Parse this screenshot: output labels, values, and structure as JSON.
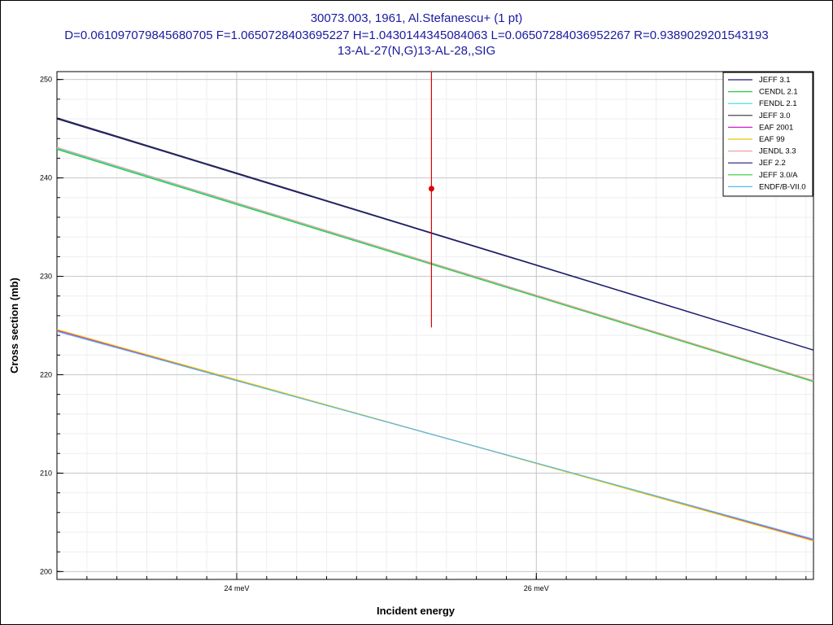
{
  "header": {
    "line1": "30073.003, 1961, Al.Stefanescu+ (1 pt)",
    "line2": "D=0.061097079845680705 F=1.0650728403695227 H=1.0430144345084063 L=0.06507284036952267 R=0.9389029201543193",
    "line3": "13-AL-27(N,G)13-AL-28,,SIG"
  },
  "chart_data": {
    "type": "line",
    "title": "30073.003, 1961, Al.Stefanescu+ (1 pt)",
    "xlabel": "Incident energy",
    "ylabel": "Cross section (mb)",
    "x_unit": "meV",
    "xlim": [
      22.8,
      27.85
    ],
    "ylim": [
      199.2,
      250.8
    ],
    "x_ticks": [
      {
        "value": 24,
        "label": "24 meV"
      },
      {
        "value": 26,
        "label": "26 meV"
      }
    ],
    "y_ticks": [
      {
        "value": 200,
        "label": "200"
      },
      {
        "value": 210,
        "label": "210"
      },
      {
        "value": 220,
        "label": "220"
      },
      {
        "value": 230,
        "label": "230"
      },
      {
        "value": 240,
        "label": "240"
      },
      {
        "value": 250,
        "label": "250"
      }
    ],
    "grid": true,
    "legend_position": "top-right",
    "series": [
      {
        "name": "JEFF 3.1",
        "color": "#1a1a7a",
        "x": [
          22.8,
          27.85
        ],
        "y": [
          246.1,
          222.5
        ]
      },
      {
        "name": "CENDL 2.1",
        "color": "#22cc44",
        "x": [
          22.8,
          27.85
        ],
        "y": [
          243.0,
          219.3
        ]
      },
      {
        "name": "FENDL 2.1",
        "color": "#33dddd",
        "x": [
          22.8,
          27.85
        ],
        "y": [
          243.0,
          219.3
        ]
      },
      {
        "name": "JEFF 3.0",
        "color": "#333333",
        "x": [
          22.8,
          27.85
        ],
        "y": [
          246.1,
          222.5
        ]
      },
      {
        "name": "EAF 2001",
        "color": "#cc22cc",
        "x": [
          22.8,
          27.85
        ],
        "y": [
          224.5,
          203.2
        ]
      },
      {
        "name": "EAF 99",
        "color": "#e8c800",
        "x": [
          22.8,
          27.85
        ],
        "y": [
          224.6,
          203.1
        ]
      },
      {
        "name": "JENDL 3.3",
        "color": "#f0a0a0",
        "x": [
          22.8,
          27.85
        ],
        "y": [
          243.1,
          219.4
        ]
      },
      {
        "name": "JEF 2.2",
        "color": "#1a1a7a",
        "x": [
          22.8,
          27.85
        ],
        "y": [
          246.0,
          222.5
        ]
      },
      {
        "name": "JEFF 3.0/A",
        "color": "#33cc33",
        "x": [
          22.8,
          27.85
        ],
        "y": [
          242.9,
          219.3
        ]
      },
      {
        "name": "ENDF/B-VII.0",
        "color": "#55bbee",
        "x": [
          22.8,
          27.85
        ],
        "y": [
          224.4,
          203.3
        ]
      }
    ],
    "measurement": {
      "x": 25.3,
      "y": 238.9,
      "y_low": 224.8,
      "y_high": 250.8,
      "color": "#dd0000"
    }
  }
}
